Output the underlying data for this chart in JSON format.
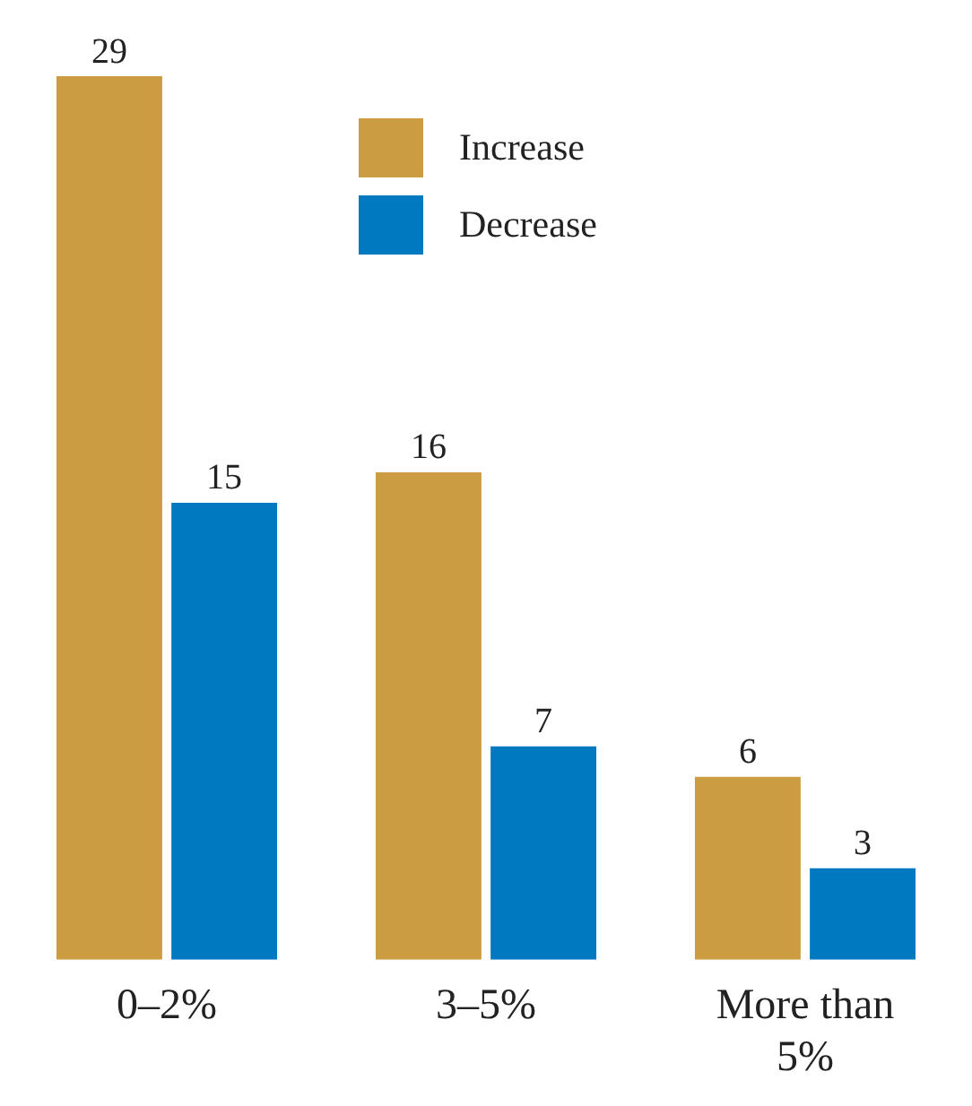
{
  "chart_data": {
    "type": "bar",
    "categories": [
      "0–2%",
      "3–5%",
      "More than 5%"
    ],
    "series": [
      {
        "name": "Increase",
        "color": "#cc9c42",
        "values": [
          29,
          16,
          6
        ]
      },
      {
        "name": "Decrease",
        "color": "#0079c1",
        "values": [
          15,
          7,
          3
        ]
      }
    ],
    "data_labels": true,
    "legend": "top",
    "grid": false
  }
}
